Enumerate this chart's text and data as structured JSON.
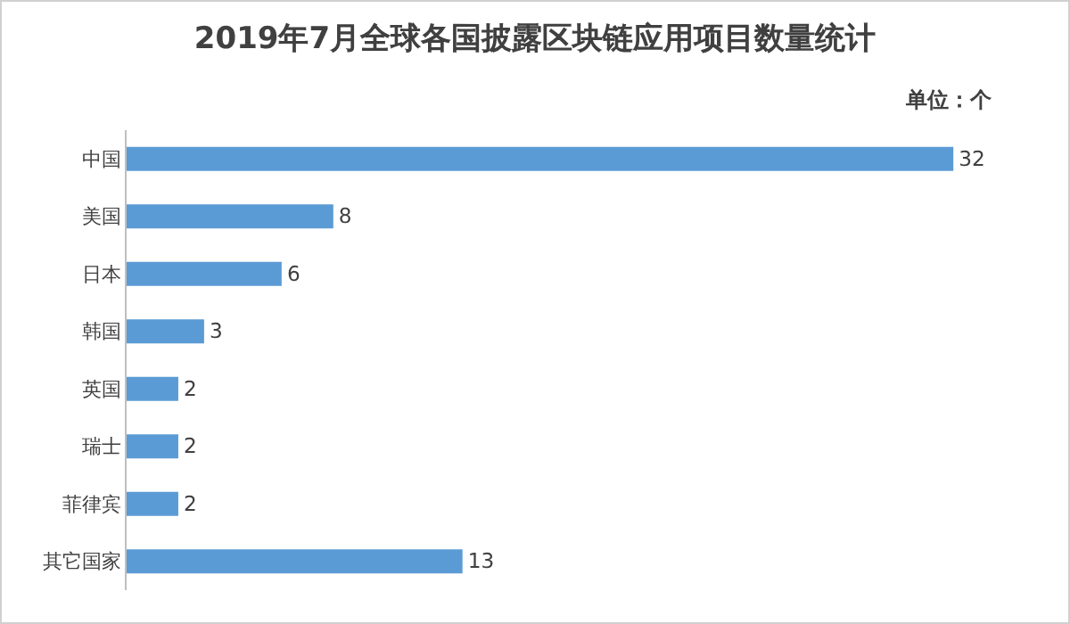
{
  "chart_data": {
    "type": "bar",
    "orientation": "horizontal",
    "title": "2019年7月全球各国披露区块链应用项目数量统计",
    "annotations": [
      "单位：个"
    ],
    "categories": [
      "中国",
      "美国",
      "日本",
      "韩国",
      "英国",
      "瑞士",
      "菲律宾",
      "其它国家"
    ],
    "values": [
      32,
      8,
      6,
      3,
      2,
      2,
      2,
      13
    ],
    "color": "#5b9bd5",
    "data_labels": true,
    "grid": false
  }
}
